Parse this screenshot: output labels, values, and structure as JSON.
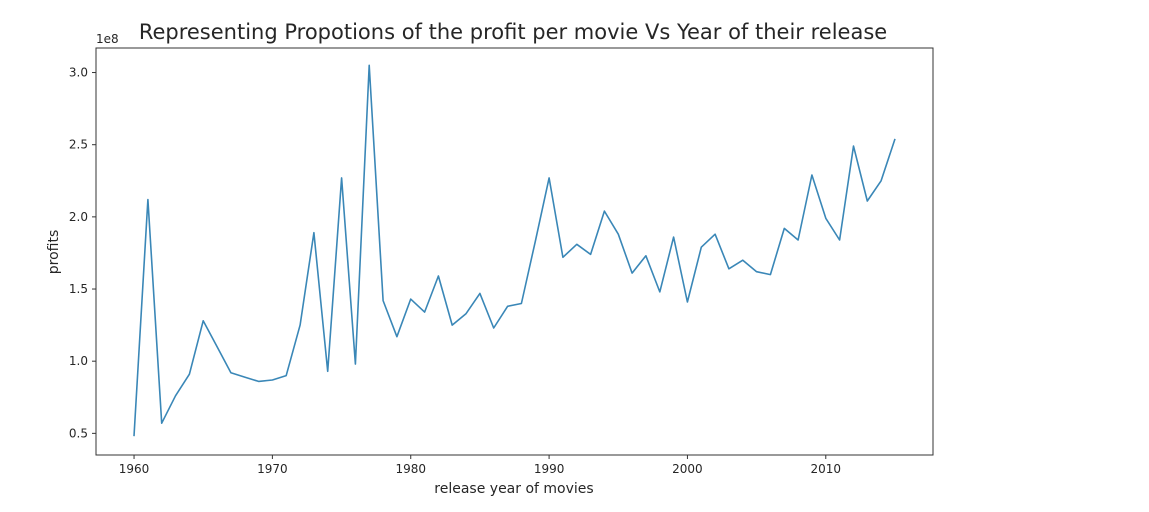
{
  "chart_data": {
    "type": "line",
    "title": "Representing Propotions of the profit per movie Vs Year of their release",
    "xlabel": "release year of movies",
    "ylabel": "profits",
    "y_offset_label": "1e8",
    "xlim": [
      1957.25,
      2017.75
    ],
    "ylim": [
      0.35,
      3.17
    ],
    "x_ticks": [
      1960,
      1970,
      1980,
      1990,
      2000,
      2010
    ],
    "y_ticks": [
      0.5,
      1.0,
      1.5,
      2.0,
      2.5,
      3.0
    ],
    "x_tick_labels": [
      "1960",
      "1970",
      "1980",
      "1990",
      "2000",
      "2010"
    ],
    "y_tick_labels": [
      "0.5",
      "1.0",
      "1.5",
      "2.0",
      "2.5",
      "3.0"
    ],
    "grid": false,
    "line_color": "#3a87b7",
    "series": [
      {
        "x": [
          1960,
          1961,
          1962,
          1963,
          1964,
          1965,
          1966,
          1967,
          1968,
          1969,
          1970,
          1971,
          1972,
          1973,
          1974,
          1975,
          1976,
          1977,
          1978,
          1979,
          1980,
          1981,
          1982,
          1983,
          1984,
          1985,
          1986,
          1987,
          1988,
          1989,
          1990,
          1991,
          1992,
          1993,
          1994,
          1995,
          1996,
          1997,
          1998,
          1999,
          2000,
          2001,
          2002,
          2003,
          2004,
          2005,
          2006,
          2007,
          2008,
          2009,
          2010,
          2011,
          2012,
          2013,
          2014,
          2015
        ],
        "values": [
          0.48,
          2.12,
          0.57,
          0.76,
          0.91,
          1.28,
          1.1,
          0.92,
          0.89,
          0.86,
          0.87,
          0.9,
          1.25,
          1.89,
          0.93,
          2.27,
          0.98,
          3.05,
          1.42,
          1.17,
          1.43,
          1.34,
          1.59,
          1.25,
          1.33,
          1.47,
          1.23,
          1.38,
          1.4,
          1.83,
          2.27,
          1.72,
          1.81,
          1.74,
          2.04,
          1.88,
          1.61,
          1.73,
          1.48,
          1.86,
          1.41,
          1.79,
          1.88,
          1.64,
          1.7,
          1.62,
          1.6,
          1.92,
          1.84,
          2.29,
          1.99,
          1.84,
          2.49,
          2.11,
          2.25,
          2.54
        ]
      }
    ]
  }
}
